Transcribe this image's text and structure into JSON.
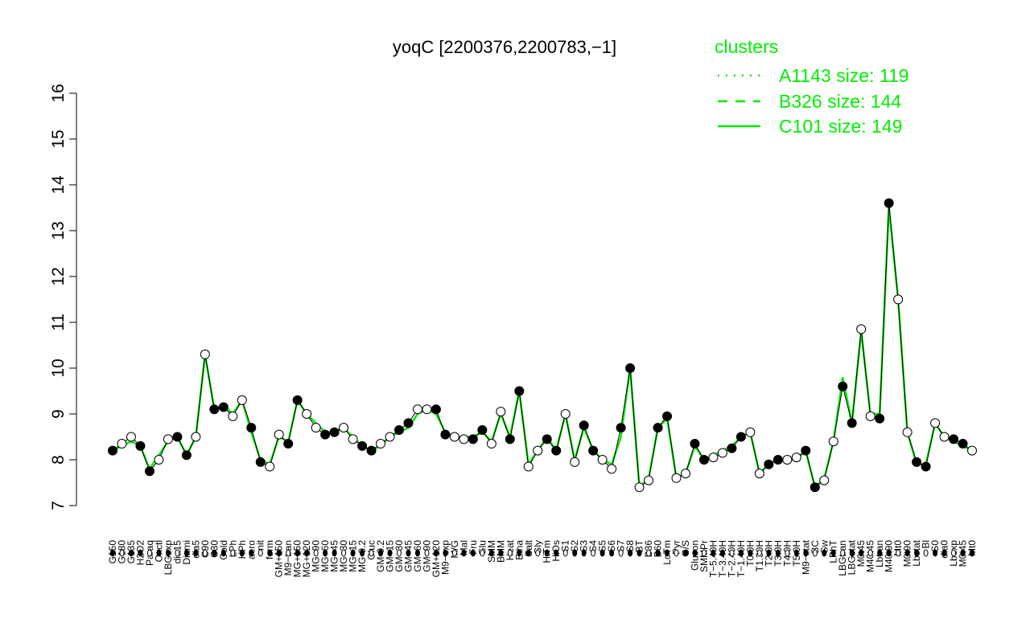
{
  "chart_data": {
    "type": "line",
    "title": "yoqC [2200376,2200783,−1]",
    "xlabel": "",
    "ylabel": "",
    "ylim": [
      7,
      16
    ],
    "yticks": [
      7,
      8,
      9,
      10,
      11,
      12,
      13,
      14,
      15,
      16
    ],
    "grid": false,
    "legend_placement": "top-right",
    "legend": {
      "title": "clusters",
      "entries": [
        {
          "label": "A1143 size: 119",
          "style": "dotted"
        },
        {
          "label": "B326 size: 144",
          "style": "dashed"
        },
        {
          "label": "C101 size: 149",
          "style": "solid"
        }
      ]
    },
    "series_color": "#00ee00",
    "points_line_color": "#000000",
    "x_categories": [
      "G150",
      "G180",
      "G135",
      "H2O2",
      "Paraq",
      "Oxctl",
      "LBGexp",
      "dia15",
      "Diami",
      "dia5",
      "C90",
      "C30",
      "Cold",
      "LPh",
      "HPh",
      "aero",
      "nit",
      "ferm",
      "GM+150",
      "M9-tran",
      "MG+150",
      "MG+120",
      "MG+90",
      "MG+60",
      "MG+45",
      "MG+30",
      "MG+15",
      "MG-0.2",
      "Gluc",
      "GM-0.2",
      "GM+15",
      "GM+30",
      "GM+45",
      "GM+60",
      "GM+90",
      "GM+120",
      "M9-exp",
      "M/G",
      "Mal",
      "Fru",
      "Glu",
      "SMM",
      "BMM",
      "Heat",
      "Etha",
      "Salt",
      "Gly",
      "HiTm",
      "HiOs",
      "S1",
      "S2",
      "S3",
      "S4",
      "S5",
      "S6",
      "S7",
      "S8",
      "BT",
      "B36",
      "B60",
      "LoTm",
      "Pyr",
      "G/S",
      "Glucon",
      "SMMPr",
      "T-5.40H",
      "T-3.40H",
      "T-2.40H",
      "T-1.40H",
      "T0.0H",
      "T1.30H",
      "T2.0H",
      "T3.0H",
      "T4.0H",
      "T5.0H",
      "M9-stat",
      "BC",
      "Sw",
      "LPhT",
      "LBGtran",
      "LBGstat",
      "M0t45",
      "M40t45",
      "Lbtran",
      "M40t90",
      "Mt0",
      "M0t90",
      "Lbstat",
      "Bl",
      "S0",
      "dia0",
      "Lbexp",
      "M0t45b",
      "Mt0b"
    ],
    "x_labels_printed": [
      "G150",
      "G180",
      "G135",
      "H2O2",
      "Paraq",
      "Oxctl",
      "LBGexp",
      "dia15",
      "Diami",
      "dia5",
      "C90",
      "C30",
      "Cold",
      "LPh",
      "HPh",
      "aero",
      "nit",
      "ferm",
      "GM+150",
      "M9−tran",
      "MG+150",
      "MG+120",
      "MG+90",
      "MG+60",
      "MG+45",
      "MG+30",
      "MG+15",
      "MG-0.2",
      "Gluc",
      "GM-0.2",
      "GM+15",
      "GM+30",
      "GM+45",
      "GM+60",
      "GM+90",
      "GM+120",
      "M9−exp",
      "M/G",
      "Mal",
      "Fru",
      "Glu",
      "SMM",
      "BMM",
      "Heat",
      "Etha",
      "Salt",
      "Gly",
      "HiTm",
      "HiOs",
      "S1",
      "S2",
      "S3",
      "S4",
      "S5",
      "S6",
      "S7",
      "S8",
      "BT",
      "B36",
      "B60",
      "LoTm",
      "Pyr",
      "G/S",
      "Glucon",
      "SMMPr",
      "T−5.40H",
      "T−3.40H",
      "T−2.40H",
      "T−1.40H",
      "T0.0H",
      "T1.30H",
      "T2.0H",
      "T3.0H",
      "T4.0H",
      "T5.0H",
      "M9−stat",
      "BC",
      "Sw",
      "LPhT",
      "LBGtran",
      "LBGstat",
      "M0t45",
      "M40t45",
      "Lbtran",
      "M40t90",
      "Mt0",
      "M0t90",
      "Lbstat",
      "Bl",
      "S0",
      "dia0",
      "Lbexp",
      "M0t45",
      "Mt0"
    ],
    "line_values": [
      8.2,
      8.3,
      8.4,
      8.3,
      7.8,
      8.1,
      8.4,
      8.5,
      8.1,
      8.5,
      10.3,
      9.1,
      9.2,
      9.0,
      9.3,
      8.6,
      8.0,
      7.9,
      8.5,
      8.4,
      9.3,
      9.0,
      8.8,
      8.6,
      8.6,
      8.7,
      8.5,
      8.3,
      8.2,
      8.3,
      8.5,
      8.6,
      8.7,
      9.0,
      9.1,
      9.0,
      8.6,
      8.5,
      8.5,
      8.5,
      8.6,
      8.4,
      9.0,
      8.5,
      9.5,
      7.9,
      8.2,
      8.5,
      8.2,
      9.0,
      8.0,
      8.7,
      8.2,
      8.0,
      7.9,
      8.5,
      10.0,
      7.4,
      7.6,
      8.7,
      8.9,
      7.6,
      7.7,
      8.3,
      8.0,
      8.1,
      8.2,
      8.3,
      8.5,
      8.6,
      7.7,
      7.9,
      8.0,
      8.0,
      8.0,
      8.2,
      7.4,
      7.6,
      8.4,
      9.8,
      8.8,
      10.8,
      9.0,
      9.0,
      13.5,
      11.5,
      8.6,
      7.9,
      7.9,
      8.8,
      8.5,
      8.4,
      8.3,
      8.2
    ],
    "point_values": [
      8.2,
      8.35,
      8.5,
      8.3,
      7.75,
      8.0,
      8.45,
      8.5,
      8.1,
      8.5,
      10.3,
      9.1,
      9.15,
      8.95,
      9.3,
      8.7,
      7.95,
      7.85,
      8.55,
      8.35,
      9.3,
      9.0,
      8.7,
      8.55,
      8.6,
      8.7,
      8.45,
      8.3,
      8.2,
      8.35,
      8.5,
      8.65,
      8.8,
      9.1,
      9.1,
      9.1,
      8.55,
      8.5,
      8.45,
      8.45,
      8.65,
      8.35,
      9.05,
      8.45,
      9.5,
      7.85,
      8.2,
      8.45,
      8.2,
      9.0,
      7.95,
      8.75,
      8.2,
      8.0,
      7.8,
      8.7,
      10.0,
      7.4,
      7.55,
      8.7,
      8.95,
      7.6,
      7.7,
      8.35,
      8.0,
      8.05,
      8.15,
      8.25,
      8.5,
      8.6,
      7.7,
      7.9,
      8.0,
      8.0,
      8.05,
      8.2,
      7.4,
      7.55,
      8.4,
      9.6,
      8.8,
      10.85,
      8.95,
      8.9,
      13.6,
      11.5,
      8.6,
      7.95,
      7.85,
      8.8,
      8.5,
      8.45,
      8.35,
      8.2
    ]
  }
}
